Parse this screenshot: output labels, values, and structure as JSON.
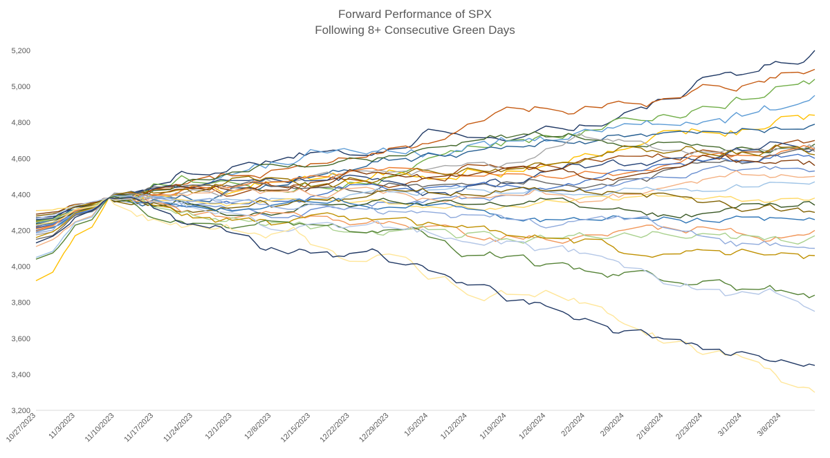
{
  "chart_data": {
    "type": "line",
    "title": "Forward Performance of SPX",
    "subtitle": "Following 8+ Consecutive Green Days",
    "xlabel": "",
    "ylabel": "",
    "ylim": [
      3200,
      5200
    ],
    "yticks": [
      3200,
      3400,
      3600,
      3800,
      4000,
      4200,
      4400,
      4600,
      4800,
      5000,
      5200
    ],
    "ytick_labels": [
      "3,200",
      "3,400",
      "3,600",
      "3,800",
      "4,000",
      "4,200",
      "4,400",
      "4,600",
      "4,800",
      "5,000",
      "5,200"
    ],
    "x_start": "10/27/2023",
    "x_end": "3/14/2024",
    "xtick_labels": [
      "10/27/2023",
      "11/3/2023",
      "11/10/2023",
      "11/17/2023",
      "11/24/2023",
      "12/1/2023",
      "12/8/2023",
      "12/15/2023",
      "12/22/2023",
      "12/29/2023",
      "1/5/2024",
      "1/12/2024",
      "1/19/2024",
      "1/26/2024",
      "2/2/2024",
      "2/9/2024",
      "2/16/2024",
      "2/23/2024",
      "3/1/2024",
      "3/8/2024"
    ],
    "anchor_date": "11/9/2023",
    "anchor_value": 4380,
    "grid": "none",
    "legend": "none",
    "series_count": 30,
    "series_colors": [
      "#1f3864",
      "#c55a11",
      "#70ad47",
      "#5b9bd5",
      "#ffc000",
      "#255e91",
      "#9e480e",
      "#43682b",
      "#a5a5a5",
      "#264478",
      "#ed7d31",
      "#636363",
      "#997300",
      "#4472c4",
      "#843c0c",
      "#698ed0",
      "#f4b183",
      "#9dc3e6",
      "#ffd966",
      "#375623",
      "#7f6000",
      "#2e75b6",
      "#f1975a",
      "#a9d18e",
      "#8faadc",
      "#bf9000",
      "#548235",
      "#b4c7e7",
      "#ffe699",
      "#203864"
    ],
    "series_start": [
      4270,
      4210,
      4255,
      4190,
      3920,
      4240,
      4220,
      4230,
      4175,
      4260,
      4200,
      4150,
      4250,
      4215,
      4290,
      4225,
      4110,
      4050,
      4310,
      4235,
      4280,
      4200,
      4195,
      4245,
      4185,
      4160,
      4040,
      4265,
      4230,
      4130
    ],
    "series_end": [
      5200,
      5095,
      5040,
      4950,
      4840,
      4790,
      4700,
      4680,
      4660,
      4655,
      4650,
      4640,
      4620,
      4600,
      4560,
      4530,
      4500,
      4470,
      4380,
      4340,
      4300,
      4260,
      4200,
      4170,
      4100,
      4060,
      3840,
      3750,
      3300,
      3450
    ]
  }
}
